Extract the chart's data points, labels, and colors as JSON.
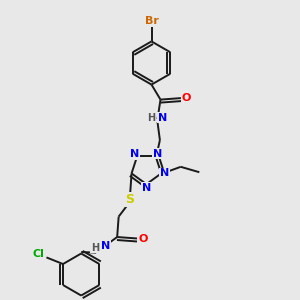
{
  "background_color": "#e8e8e8",
  "bond_color": "#1a1a1a",
  "bond_width": 1.4,
  "font_size": 8,
  "colors": {
    "Br": "#cc6600",
    "O": "#ff0000",
    "N": "#0000ee",
    "S": "#cccc00",
    "Cl": "#00aa00",
    "C": "#1a1a1a",
    "H": "#555555"
  }
}
